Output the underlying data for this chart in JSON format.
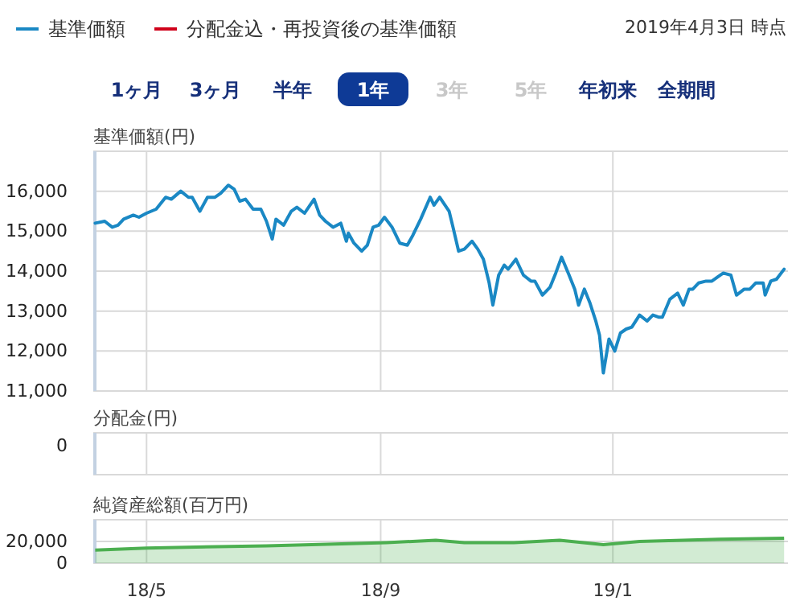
{
  "chart_data": [
    {
      "type": "line",
      "subtitle": "2019年4月3日 時点",
      "ylabel": "基準価額(円)",
      "legend": "top left",
      "grid": true,
      "tick_labels": "y",
      "annotations": [
        "1ヶ月",
        "3ヶ月",
        "半年",
        "1年",
        "3年",
        "5年",
        "年初来",
        "全期間"
      ],
      "xlim": [
        "2018-04-03",
        "2019-04-03"
      ],
      "xticks": [
        {
          "value": "2018-05-01",
          "label": null
        },
        {
          "value": "2018-09-01",
          "label": null
        },
        {
          "value": "2019-01-01",
          "label": null
        }
      ],
      "ylim": [
        11000,
        17000
      ],
      "yticks": [
        {
          "value": 11000,
          "label": "11,000"
        },
        {
          "value": 12000,
          "label": "12,000"
        },
        {
          "value": 13000,
          "label": "13,000"
        },
        {
          "value": 14000,
          "label": "14,000"
        },
        {
          "value": 15000,
          "label": "15,000"
        },
        {
          "value": 16000,
          "label": "16,000"
        }
      ],
      "series": [
        {
          "name": "基準価額",
          "color": "#1a88c4",
          "x": [
            "2018-04-04",
            "2018-04-09",
            "2018-04-13",
            "2018-04-16",
            "2018-04-19",
            "2018-04-24",
            "2018-04-27",
            "2018-05-01",
            "2018-05-06",
            "2018-05-11",
            "2018-05-14",
            "2018-05-19",
            "2018-05-23",
            "2018-05-25",
            "2018-05-29",
            "2018-06-02",
            "2018-06-06",
            "2018-06-09",
            "2018-06-13",
            "2018-06-16",
            "2018-06-19",
            "2018-06-22",
            "2018-06-26",
            "2018-06-30",
            "2018-07-03",
            "2018-07-06",
            "2018-07-08",
            "2018-07-12",
            "2018-07-16",
            "2018-07-19",
            "2018-07-23",
            "2018-07-28",
            "2018-07-31",
            "2018-08-03",
            "2018-08-07",
            "2018-08-11",
            "2018-08-14",
            "2018-08-15",
            "2018-08-18",
            "2018-08-22",
            "2018-08-25",
            "2018-08-28",
            "2018-08-31",
            "2018-09-03",
            "2018-09-07",
            "2018-09-11",
            "2018-09-15",
            "2018-09-18",
            "2018-09-22",
            "2018-09-27",
            "2018-09-29",
            "2018-10-02",
            "2018-10-07",
            "2018-10-09",
            "2018-10-12",
            "2018-10-15",
            "2018-10-19",
            "2018-10-22",
            "2018-10-25",
            "2018-10-28",
            "2018-10-30",
            "2018-11-02",
            "2018-11-05",
            "2018-11-07",
            "2018-11-11",
            "2018-11-15",
            "2018-11-19",
            "2018-11-21",
            "2018-11-25",
            "2018-11-29",
            "2018-12-02",
            "2018-12-05",
            "2018-12-09",
            "2018-12-12",
            "2018-12-14",
            "2018-12-17",
            "2018-12-20",
            "2018-12-23",
            "2018-12-25",
            "2018-12-27",
            "2018-12-30",
            "2019-01-02",
            "2019-01-05",
            "2019-01-08",
            "2019-01-11",
            "2019-01-15",
            "2019-01-19",
            "2019-01-22",
            "2019-01-25",
            "2019-01-27",
            "2019-01-31",
            "2019-02-04",
            "2019-02-07",
            "2019-02-10",
            "2019-02-12",
            "2019-02-15",
            "2019-02-19",
            "2019-02-22",
            "2019-02-25",
            "2019-02-28",
            "2019-03-04",
            "2019-03-07",
            "2019-03-11",
            "2019-03-14",
            "2019-03-17",
            "2019-03-21",
            "2019-03-22",
            "2019-03-25",
            "2019-03-28",
            "2019-04-01"
          ],
          "values": [
            15200,
            15250,
            15100,
            15150,
            15300,
            15400,
            15350,
            15450,
            15550,
            15850,
            15800,
            16000,
            15850,
            15850,
            15500,
            15850,
            15850,
            15950,
            16150,
            16050,
            15750,
            15800,
            15550,
            15550,
            15250,
            14800,
            15300,
            15150,
            15500,
            15600,
            15450,
            15800,
            15400,
            15250,
            15100,
            15200,
            14750,
            14950,
            14700,
            14500,
            14650,
            15100,
            15150,
            15350,
            15100,
            14700,
            14650,
            14900,
            15300,
            15850,
            15650,
            15850,
            15500,
            15100,
            14500,
            14550,
            14750,
            14550,
            14300,
            13700,
            13150,
            13900,
            14150,
            14050,
            14300,
            13900,
            13750,
            13750,
            13400,
            13600,
            13950,
            14350,
            13900,
            13550,
            13150,
            13550,
            13200,
            12750,
            12400,
            11450,
            12300,
            12000,
            12450,
            12550,
            12600,
            12900,
            12750,
            12900,
            12850,
            12850,
            13300,
            13450,
            13150,
            13550,
            13550,
            13700,
            13750,
            13750,
            13850,
            13950,
            13900,
            13400,
            13550,
            13550,
            13700,
            13700,
            13400,
            13750,
            13800,
            14050
          ]
        },
        {
          "name": "分配金込・再投資後の基準価額",
          "color": "#d0021b"
        }
      ]
    },
    {
      "type": "other",
      "ylabel": "分配金(円)",
      "annotations": [
        "0"
      ]
    },
    {
      "type": "area",
      "ylabel": "純資産総額(百万円)",
      "grid": true,
      "xlim": [
        "2018-04-03",
        "2019-04-03"
      ],
      "xticks": [
        {
          "value": "2018-05-01",
          "label": "18/5"
        },
        {
          "value": "2018-09-01",
          "label": "18/9"
        },
        {
          "value": "2019-01-01",
          "label": "19/1"
        }
      ],
      "ylim": [
        0,
        40000
      ],
      "yticks": [
        {
          "value": 0,
          "label": "0"
        },
        {
          "value": 20000,
          "label": "20,000"
        }
      ],
      "series": [
        {
          "color": "#4caf50",
          "x": [
            "2018-04-04",
            "2018-05-01",
            "2018-07-03",
            "2018-09-04",
            "2018-09-30",
            "2018-10-15",
            "2018-11-10",
            "2018-12-04",
            "2018-12-27",
            "2019-01-15",
            "2019-02-26",
            "2019-04-01"
          ],
          "values": [
            12000,
            14000,
            16000,
            19000,
            21000,
            19000,
            19000,
            21000,
            17000,
            20000,
            22000,
            23000
          ]
        }
      ]
    }
  ]
}
